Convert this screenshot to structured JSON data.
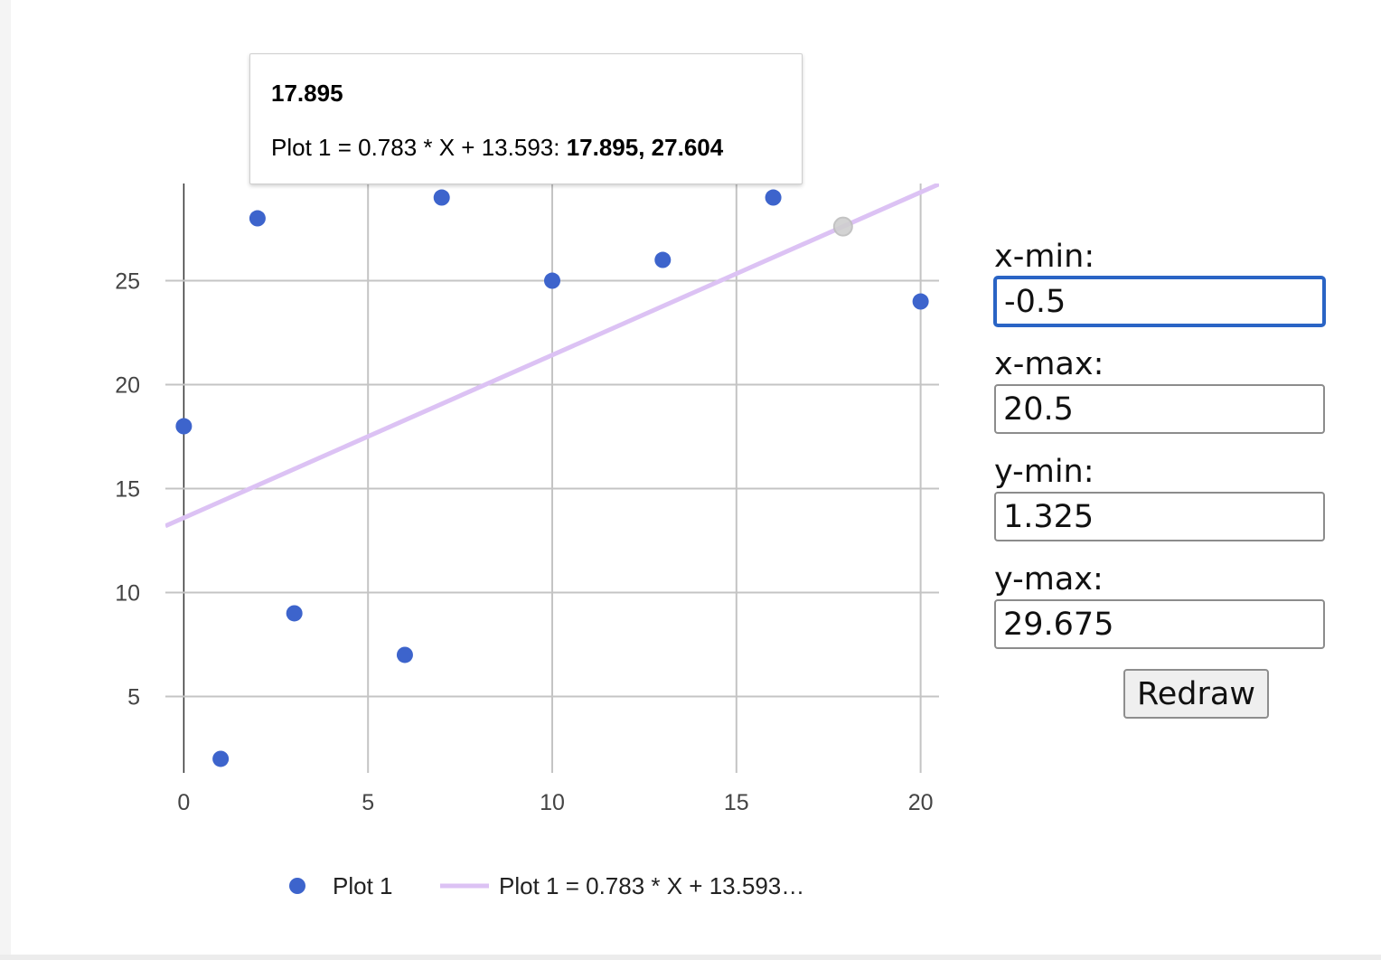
{
  "chart_data": {
    "type": "scatter",
    "xlim": [
      -0.5,
      20.5
    ],
    "ylim": [
      1.325,
      29.675
    ],
    "x_ticks": [
      0,
      5,
      10,
      15,
      20
    ],
    "y_ticks": [
      5,
      10,
      15,
      20,
      25
    ],
    "grid": true,
    "legend_position": "bottom",
    "series": [
      {
        "name": "Plot 1",
        "kind": "points",
        "color": "#3d64cc",
        "x": [
          0,
          1,
          2,
          3,
          6,
          7,
          10,
          13,
          16,
          20
        ],
        "y": [
          18,
          2,
          28,
          9,
          7,
          29,
          25,
          26,
          29,
          24
        ]
      },
      {
        "name": "Plot 1 = 0.783 * X + 13.593…",
        "kind": "trendline",
        "color": "#dcc2f4",
        "slope": 0.783,
        "intercept": 13.593
      }
    ],
    "highlight_point": {
      "x": 17.895,
      "y": 27.604
    }
  },
  "tooltip": {
    "title": "17.895",
    "series_label": "Plot 1 = 0.783 * X + 13.593: ",
    "value": "17.895, 27.604"
  },
  "controls": {
    "xmin_label": "x-min:",
    "xmin_value": "-0.5",
    "xmax_label": "x-max:",
    "xmax_value": "20.5",
    "ymin_label": "y-min:",
    "ymin_value": "1.325",
    "ymax_label": "y-max:",
    "ymax_value": "29.675",
    "redraw_label": "Redraw"
  }
}
